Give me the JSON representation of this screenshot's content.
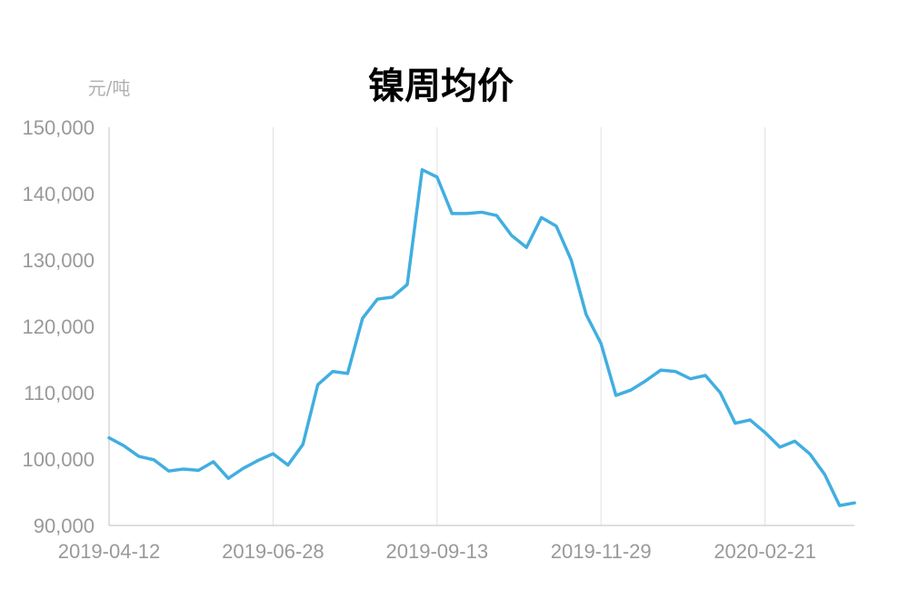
{
  "chart_data": {
    "type": "line",
    "title": "镍周均价",
    "ylabel": "元/吨",
    "xlabel": "",
    "ylim": [
      90000,
      150000
    ],
    "yticks": [
      "90,000",
      "100,000",
      "110,000",
      "120,000",
      "130,000",
      "140,000",
      "150,000"
    ],
    "xticks": [
      "2019-04-12",
      "2019-06-28",
      "2019-09-13",
      "2019-11-29",
      "2020-02-21"
    ],
    "grid": "vertical",
    "line_color": "#41aee0",
    "series": [
      {
        "values": [
          103200,
          102000,
          100400,
          99900,
          98200,
          98500,
          98300,
          99600,
          97100,
          98600,
          99800,
          100800,
          99100,
          102200,
          111200,
          113200,
          112900,
          121200,
          124100,
          124400,
          126300,
          143600,
          142500,
          137000,
          137000,
          137200,
          136700,
          133700,
          131900,
          136400,
          135100,
          130000,
          121800,
          117400,
          109600,
          110400,
          111800,
          113400,
          113200,
          112100,
          112600,
          110000,
          105400,
          105900,
          104000,
          101800,
          102700,
          100800,
          97700,
          93000,
          93400
        ]
      }
    ]
  }
}
